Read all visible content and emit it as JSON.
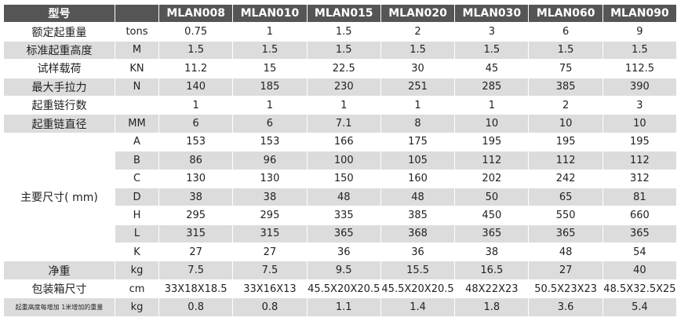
{
  "header": {
    "title": "型号",
    "models": [
      "MLAN008",
      "MLAN010",
      "MLAN015",
      "MLAN020",
      "MLAN030",
      "MLAN060",
      "MLAN090"
    ]
  },
  "rows_top": [
    {
      "label": "额定起重量",
      "unit": "tons",
      "values": [
        "0.75",
        "1",
        "1.5",
        "2",
        "3",
        "6",
        "9"
      ]
    },
    {
      "label": "标准起重高度",
      "unit": "M",
      "values": [
        "1.5",
        "1.5",
        "1.5",
        "1.5",
        "1.5",
        "1.5",
        "1.5"
      ]
    },
    {
      "label": "试样载荷",
      "unit": "KN",
      "values": [
        "11.2",
        "15",
        "22.5",
        "30",
        "45",
        "75",
        "112.5"
      ]
    },
    {
      "label": "最大手拉力",
      "unit": "N",
      "values": [
        "140",
        "185",
        "230",
        "251",
        "285",
        "385",
        "390"
      ]
    },
    {
      "label": "起重链行数",
      "values": [
        "1",
        "1",
        "1",
        "1",
        "1",
        "2",
        "3"
      ]
    },
    {
      "label": "起重链直径",
      "unit": "MM",
      "values": [
        "6",
        "6",
        "7.1",
        "8",
        "10",
        "10",
        "10"
      ]
    }
  ],
  "dimensions": {
    "label": "主要尺寸( mm)",
    "rows": [
      {
        "sub": "A",
        "values": [
          "153",
          "153",
          "166",
          "175",
          "195",
          "195",
          "195"
        ]
      },
      {
        "sub": "B",
        "values": [
          "86",
          "96",
          "100",
          "105",
          "112",
          "112",
          "112"
        ]
      },
      {
        "sub": "C",
        "values": [
          "130",
          "130",
          "150",
          "160",
          "202",
          "242",
          "312"
        ]
      },
      {
        "sub": "D",
        "values": [
          "38",
          "38",
          "48",
          "48",
          "50",
          "65",
          "81"
        ]
      },
      {
        "sub": "H",
        "values": [
          "295",
          "295",
          "335",
          "385",
          "450",
          "550",
          "660"
        ]
      },
      {
        "sub": "L",
        "values": [
          "315",
          "315",
          "365",
          "368",
          "365",
          "365",
          "365"
        ]
      },
      {
        "sub": "K",
        "values": [
          "27",
          "27",
          "36",
          "36",
          "38",
          "48",
          "54"
        ]
      }
    ]
  },
  "rows_bottom": [
    {
      "label": "净重",
      "unit": "kg",
      "values": [
        "7.5",
        "7.5",
        "9.5",
        "15.5",
        "16.5",
        "27",
        "40"
      ]
    },
    {
      "label": "包装箱尺寸",
      "unit": "cm",
      "values": [
        "33X18X18.5",
        "33X16X13",
        "45.5X20X20.5",
        "45.5X20X20.5",
        "48X22X23",
        "50.5X23X23",
        "48.5X32.5X25"
      ]
    },
    {
      "label": "起重高度每增加 1米增加的重量",
      "unit": "kg",
      "values": [
        "0.8",
        "0.8",
        "1.1",
        "1.4",
        "1.8",
        "3.6",
        "5.4"
      ]
    }
  ]
}
